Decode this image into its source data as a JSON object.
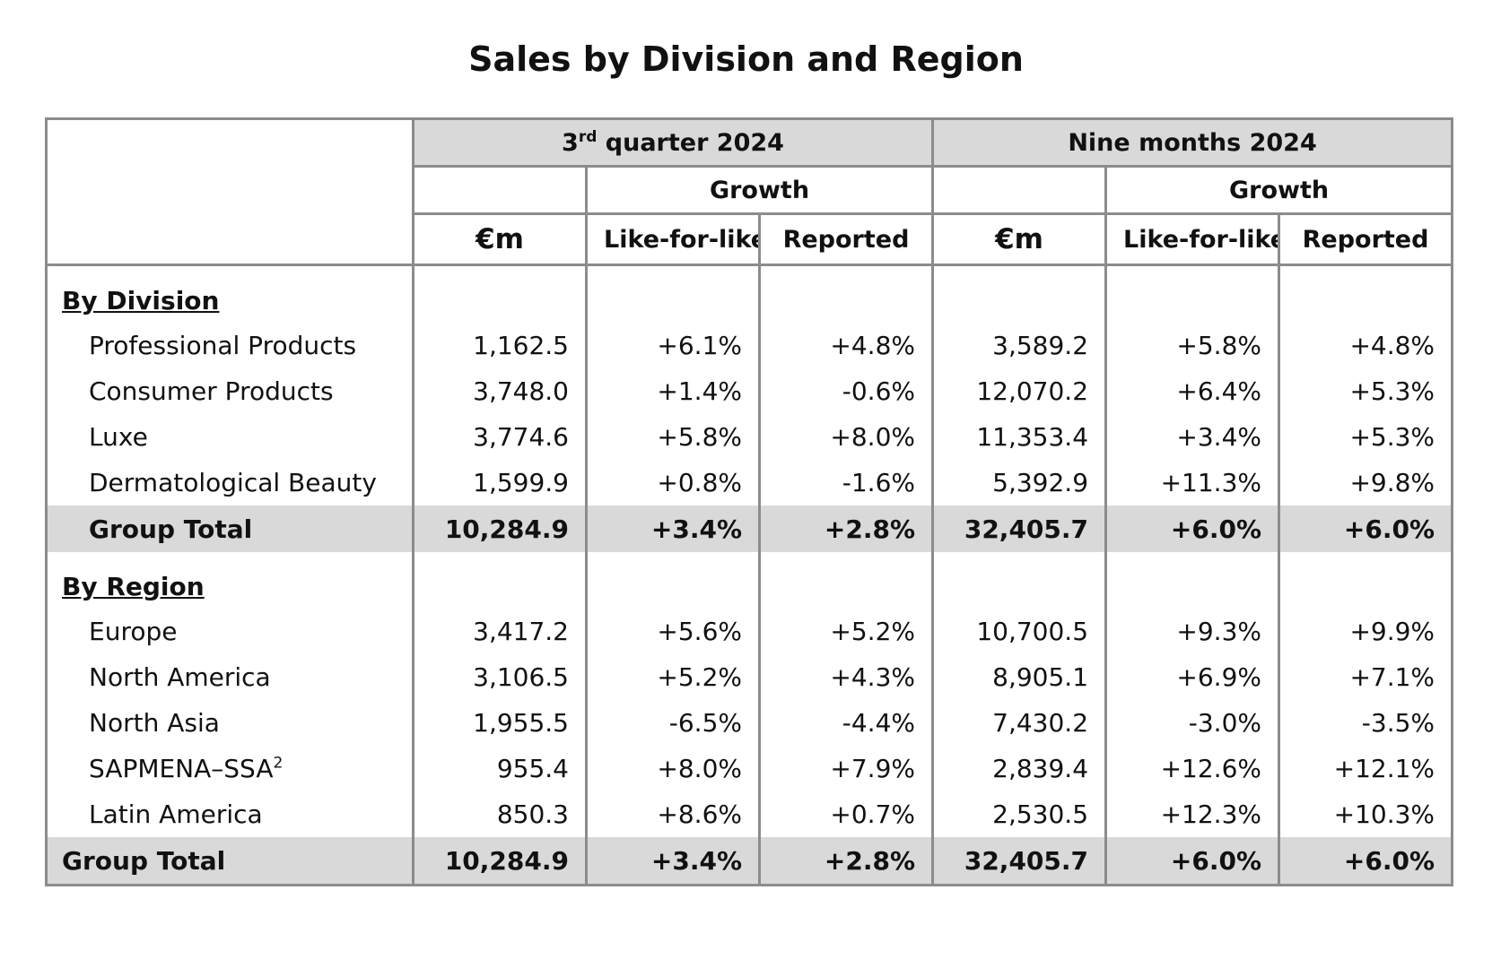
{
  "title": "Sales by Division and Region",
  "header": {
    "period1_prefix": "3",
    "period1_sup": "rd",
    "period1_suffix": " quarter 2024",
    "period2": "Nine months 2024",
    "growth": "Growth",
    "unit": "€m",
    "lfl": "Like-for-like",
    "reported": "Reported"
  },
  "division": {
    "heading": "By Division",
    "rows": [
      {
        "label": "Professional Products",
        "q_em": "1,162.5",
        "q_lfl": "+6.1%",
        "q_rep": "+4.8%",
        "n_em": "3,589.2",
        "n_lfl": "+5.8%",
        "n_rep": "+4.8%"
      },
      {
        "label": "Consumer Products",
        "q_em": "3,748.0",
        "q_lfl": "+1.4%",
        "q_rep": "-0.6%",
        "n_em": "12,070.2",
        "n_lfl": "+6.4%",
        "n_rep": "+5.3%"
      },
      {
        "label": "Luxe",
        "q_em": "3,774.6",
        "q_lfl": "+5.8%",
        "q_rep": "+8.0%",
        "n_em": "11,353.4",
        "n_lfl": "+3.4%",
        "n_rep": "+5.3%"
      },
      {
        "label": "Dermatological Beauty",
        "q_em": "1,599.9",
        "q_lfl": "+0.8%",
        "q_rep": "-1.6%",
        "n_em": "5,392.9",
        "n_lfl": "+11.3%",
        "n_rep": "+9.8%"
      }
    ],
    "total": {
      "label": "Group Total",
      "q_em": "10,284.9",
      "q_lfl": "+3.4%",
      "q_rep": "+2.8%",
      "n_em": "32,405.7",
      "n_lfl": "+6.0%",
      "n_rep": "+6.0%"
    }
  },
  "region": {
    "heading": "By Region",
    "rows": [
      {
        "label": "Europe",
        "q_em": "3,417.2",
        "q_lfl": "+5.6%",
        "q_rep": "+5.2%",
        "n_em": "10,700.5",
        "n_lfl": "+9.3%",
        "n_rep": "+9.9%"
      },
      {
        "label": "North America",
        "q_em": "3,106.5",
        "q_lfl": "+5.2%",
        "q_rep": "+4.3%",
        "n_em": "8,905.1",
        "n_lfl": "+6.9%",
        "n_rep": "+7.1%"
      },
      {
        "label": "North Asia",
        "q_em": "1,955.5",
        "q_lfl": "-6.5%",
        "q_rep": "-4.4%",
        "n_em": "7,430.2",
        "n_lfl": "-3.0%",
        "n_rep": "-3.5%"
      },
      {
        "label": "SAPMENA–SSA",
        "label_sup": "2",
        "q_em": "955.4",
        "q_lfl": "+8.0%",
        "q_rep": "+7.9%",
        "n_em": "2,839.4",
        "n_lfl": "+12.6%",
        "n_rep": "+12.1%"
      },
      {
        "label": "Latin America",
        "q_em": "850.3",
        "q_lfl": "+8.6%",
        "q_rep": "+0.7%",
        "n_em": "2,530.5",
        "n_lfl": "+12.3%",
        "n_rep": "+10.3%"
      }
    ],
    "total": {
      "label": "Group Total",
      "q_em": "10,284.9",
      "q_lfl": "+3.4%",
      "q_rep": "+2.8%",
      "n_em": "32,405.7",
      "n_lfl": "+6.0%",
      "n_rep": "+6.0%"
    }
  }
}
